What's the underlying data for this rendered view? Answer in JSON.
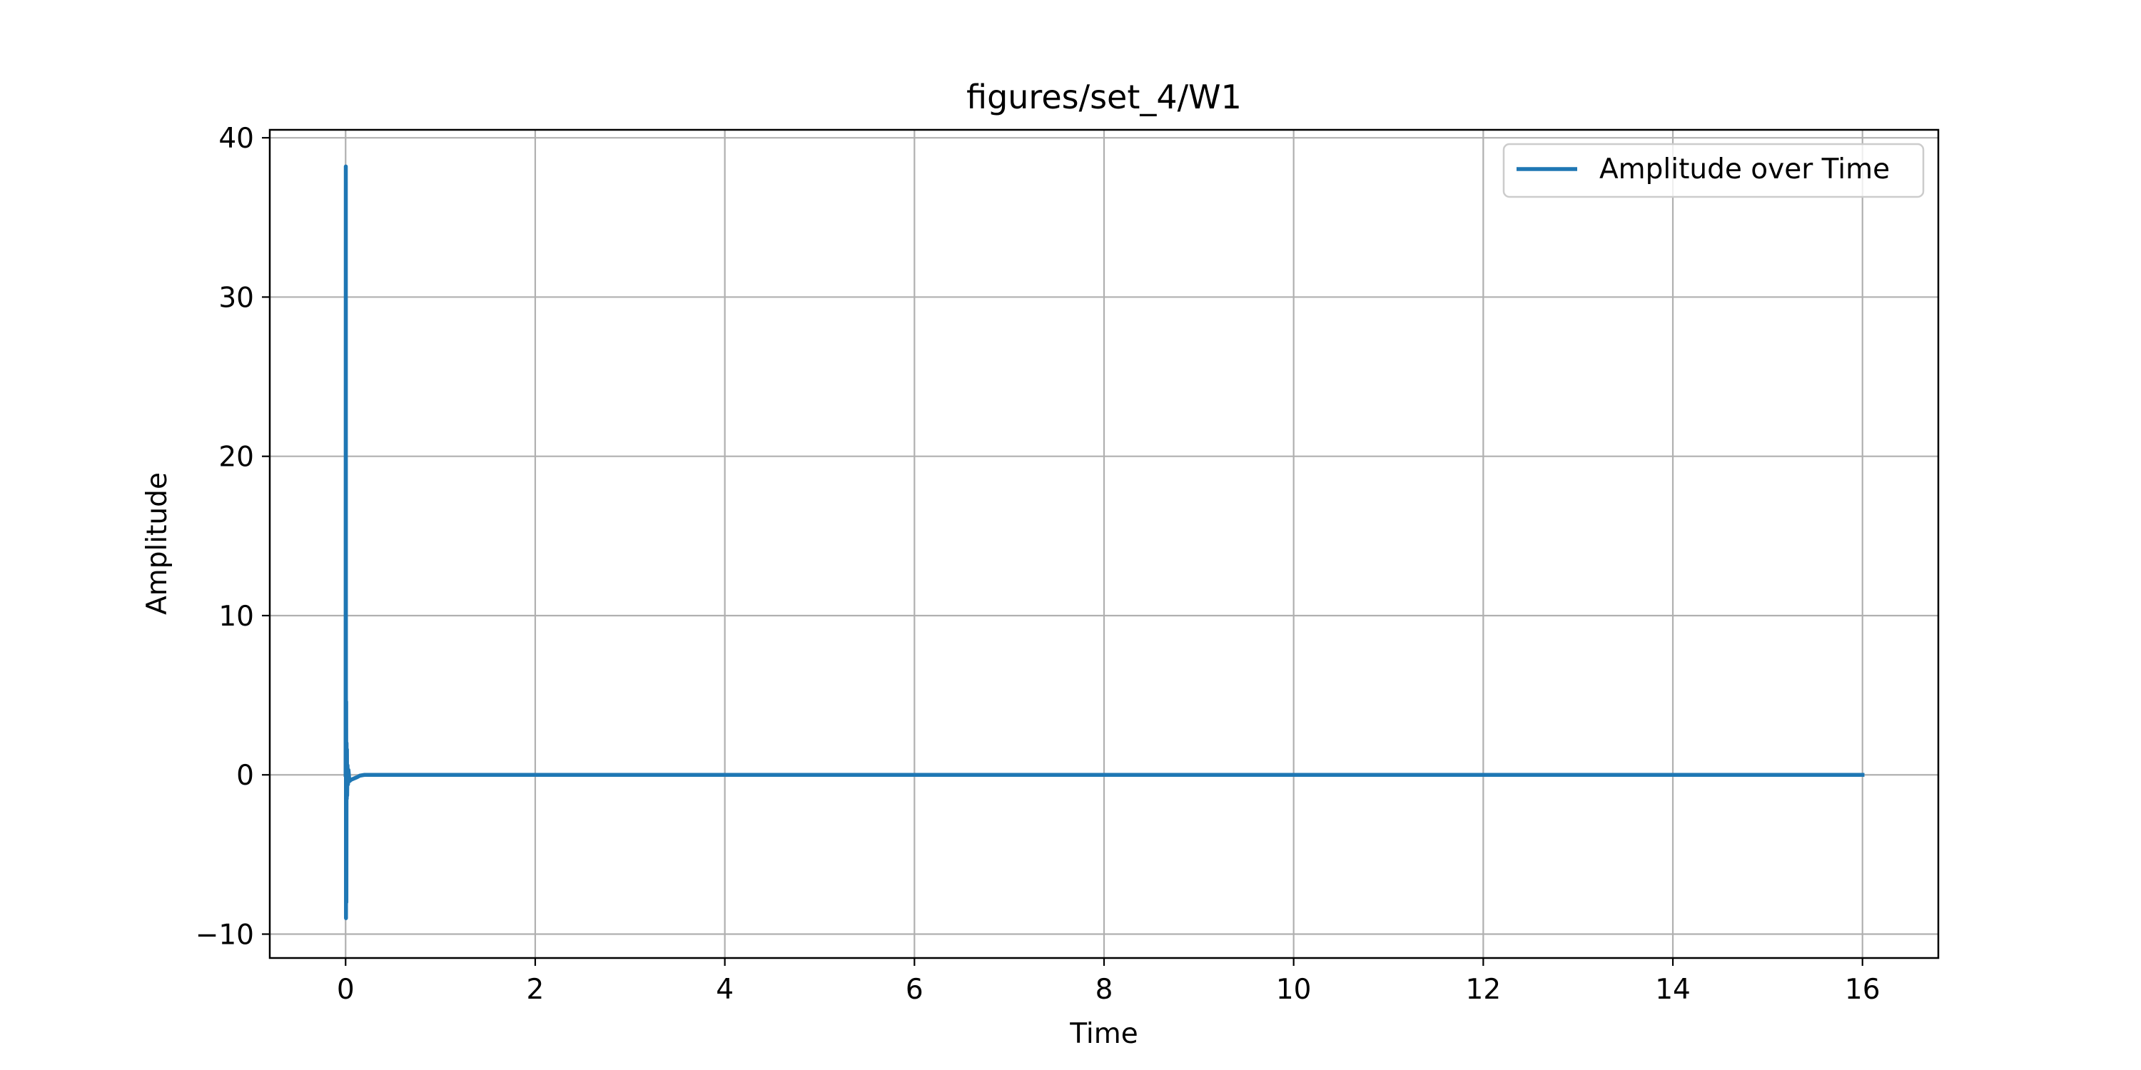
{
  "chart_data": {
    "type": "line",
    "title": "figures/set_4/W1",
    "xlabel": "Time",
    "ylabel": "Amplitude",
    "xlim": [
      -0.8,
      16.8
    ],
    "ylim": [
      -11.5,
      40.5
    ],
    "xticks": [
      0,
      2,
      4,
      6,
      8,
      10,
      12,
      14,
      16
    ],
    "xtick_labels": [
      "0",
      "2",
      "4",
      "6",
      "8",
      "10",
      "12",
      "14",
      "16"
    ],
    "yticks": [
      -10,
      0,
      10,
      20,
      30,
      40
    ],
    "ytick_labels": [
      "−10",
      "0",
      "10",
      "20",
      "30",
      "40"
    ],
    "grid": true,
    "legend": {
      "position": "top-right",
      "entries": [
        "Amplitude over Time"
      ]
    },
    "series": [
      {
        "name": "Amplitude over Time",
        "color": "#1f77b4",
        "x": [
          0.0,
          0.002,
          0.004,
          0.006,
          0.008,
          0.01,
          0.012,
          0.014,
          0.016,
          0.02,
          0.025,
          0.03,
          0.04,
          0.06,
          0.08,
          0.1,
          0.12,
          0.15,
          0.2,
          0.5,
          1,
          2,
          4,
          6,
          8,
          10,
          12,
          14,
          16
        ],
        "y": [
          0.0,
          38.2,
          -9.0,
          4.6,
          -8.0,
          2.0,
          -1.5,
          1.6,
          -1.3,
          0.6,
          -0.6,
          0.3,
          -0.4,
          -0.3,
          -0.25,
          -0.2,
          -0.15,
          -0.05,
          0.0,
          0.0,
          0.0,
          0.0,
          0.0,
          0.0,
          0.0,
          0.0,
          0.0,
          0.0,
          0.0
        ]
      }
    ]
  }
}
